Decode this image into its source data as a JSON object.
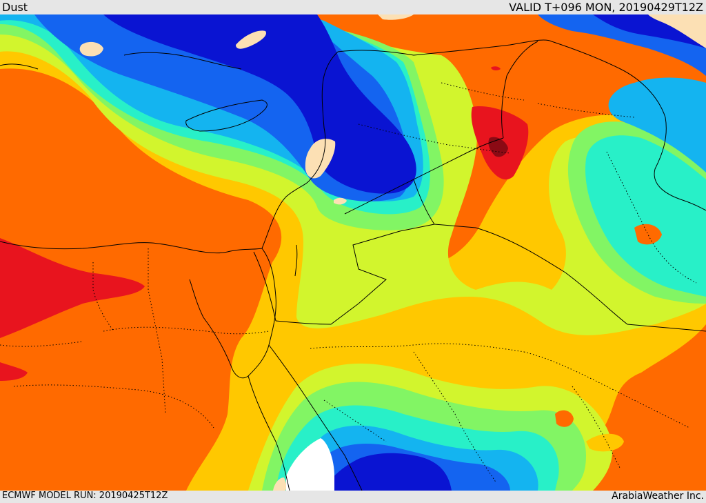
{
  "header": {
    "title": "Dust",
    "valid_time": "VALID T+096 MON, 20190429T12Z"
  },
  "footer": {
    "model_run": "ECMWF MODEL RUN: 20190425T12Z",
    "credit": "ArabiaWeather Inc."
  },
  "palette": {
    "darkest_red": "#8b0a14",
    "red": "#e8141e",
    "orange": "#ff6a00",
    "amber": "#ffc800",
    "yellow_green": "#d2f52d",
    "light_green": "#82f564",
    "turquoise": "#28f0c8",
    "sky_blue": "#14b4f0",
    "blue": "#1464f0",
    "dark_blue": "#0a14d2",
    "land_no_data": "#fce0b4",
    "outside": "#ffffff"
  }
}
